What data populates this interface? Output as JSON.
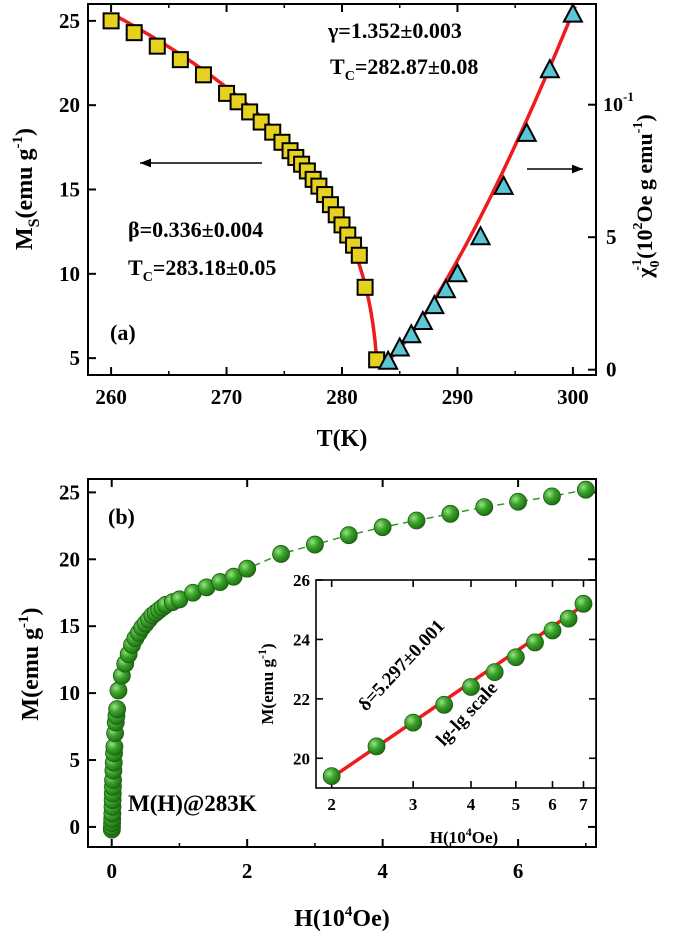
{
  "chart_data": [
    {
      "panel": "a",
      "type": "scatter",
      "panel_label": "(a)",
      "xlabel": "T(K)",
      "xlim": [
        258,
        302
      ],
      "xticks": [
        260,
        270,
        280,
        290,
        300
      ],
      "left_axis": {
        "label_main": "M",
        "label_sub": "S",
        "label_rest": "(emu g",
        "label_sup": "-1",
        "label_close": ")",
        "ylim": [
          4,
          26
        ],
        "yticks": [
          5,
          10,
          15,
          20,
          25
        ]
      },
      "right_axis": {
        "label_main": "χ",
        "label_sub": "0",
        "label_pre_sup": "-1",
        "label_rest": "(10",
        "label_sup2": "2",
        "label_rest2": "Oe g emu",
        "label_sup3": "-1",
        "label_close": ")",
        "ylim": [
          -0.2,
          13.8
        ],
        "yticks": [
          0,
          5,
          10
        ],
        "top_tick_exponent": "-1"
      },
      "series": [
        {
          "name": "Ms(T)",
          "marker": "square",
          "color": "#e6d21e",
          "axis": "left",
          "x": [
            260,
            262,
            264,
            266,
            268,
            270,
            271,
            272,
            273,
            274,
            274.8,
            275.5,
            276,
            276.5,
            277,
            277.5,
            278,
            278.5,
            279,
            279.5,
            280,
            280.5,
            281,
            281.5,
            282,
            283
          ],
          "y": [
            25.0,
            24.3,
            23.5,
            22.7,
            21.8,
            20.7,
            20.2,
            19.6,
            19.0,
            18.4,
            17.8,
            17.3,
            16.9,
            16.5,
            16.1,
            15.6,
            15.2,
            14.7,
            14.1,
            13.5,
            12.9,
            12.3,
            11.7,
            11.1,
            9.2,
            4.9
          ]
        },
        {
          "name": "chi0^-1(T)",
          "marker": "triangle",
          "color": "#5bc7d4",
          "axis": "right",
          "x": [
            284,
            285,
            286,
            287,
            288,
            289,
            290,
            292,
            294,
            296,
            298,
            300
          ],
          "y": [
            0.3,
            0.8,
            1.3,
            1.8,
            2.4,
            3.0,
            3.6,
            5.0,
            6.9,
            8.9,
            11.3,
            13.4
          ]
        }
      ],
      "fit_left": {
        "beta": 0.336,
        "tc": 283.18,
        "x_from": 260,
        "x_to": 283.18
      },
      "fit_right": {
        "gamma": 1.352,
        "tc": 282.87,
        "x_from": 283.18,
        "x_to": 300.2
      },
      "annotations": {
        "gamma_line": "γ=1.352±0.003",
        "tc_right_prefix": "T",
        "tc_right_sub": "C",
        "tc_right_value": "=282.87±0.08",
        "beta_line": "β=0.336±0.004",
        "tc_left_prefix": "T",
        "tc_left_sub": "C",
        "tc_left_value": "=283.18±0.05"
      },
      "fit_color": "#ee1c1c"
    },
    {
      "panel": "b",
      "type": "scatter",
      "panel_label": "(b)",
      "xlabel_main": "H(10",
      "xlabel_sup": "4",
      "xlabel_close": "Oe)",
      "ylabel_main": "M(emu g",
      "ylabel_sup": "-1",
      "ylabel_close": ")",
      "xlim": [
        -0.35,
        7.15
      ],
      "ylim": [
        -1.5,
        26
      ],
      "xticks": [
        0,
        2,
        4,
        6
      ],
      "yticks": [
        0,
        5,
        10,
        15,
        20,
        25
      ],
      "marker_color": "#2e9c1e",
      "curve_label": "M(H)@283K",
      "series": [
        {
          "name": "M(H)",
          "x": [
            0.002,
            0.004,
            0.006,
            0.008,
            0.01,
            0.012,
            0.014,
            0.016,
            0.018,
            0.02,
            0.025,
            0.03,
            0.035,
            0.04,
            0.05,
            0.06,
            0.07,
            0.08,
            0.1,
            0.15,
            0.2,
            0.25,
            0.3,
            0.35,
            0.4,
            0.45,
            0.5,
            0.55,
            0.6,
            0.65,
            0.7,
            0.75,
            0.8,
            0.9,
            1.0,
            1.2,
            1.4,
            1.6,
            1.8,
            2.0,
            2.5,
            3.0,
            3.5,
            4.0,
            4.5,
            5.0,
            5.5,
            6.0,
            6.5,
            7.0
          ],
          "y": [
            -0.2,
            0.0,
            0.3,
            0.6,
            1.0,
            1.5,
            2.0,
            2.5,
            3.0,
            3.5,
            4.2,
            4.8,
            5.5,
            6.0,
            7.0,
            7.8,
            8.3,
            8.8,
            10.2,
            11.3,
            12.2,
            12.9,
            13.6,
            14.1,
            14.5,
            14.9,
            15.2,
            15.5,
            15.8,
            16.0,
            16.2,
            16.4,
            16.6,
            16.8,
            17.0,
            17.5,
            17.9,
            18.3,
            18.7,
            19.3,
            20.4,
            21.1,
            21.8,
            22.4,
            22.9,
            23.4,
            23.9,
            24.3,
            24.7,
            25.2
          ]
        }
      ],
      "inset": {
        "type": "scatter",
        "xlabel_main": "H(10",
        "xlabel_sup": "4",
        "xlabel_close": "Oe)",
        "ylabel_main": "M(emu g",
        "ylabel_sup": "-1",
        "ylabel_close": ")",
        "xscale": "log",
        "xlim": [
          1.85,
          7.45
        ],
        "ylim": [
          19,
          26
        ],
        "xticks": [
          2,
          3,
          4,
          5,
          6,
          7
        ],
        "yticks": [
          20,
          22,
          24,
          26
        ],
        "x": [
          2.0,
          2.5,
          3.0,
          3.5,
          4.0,
          4.5,
          5.0,
          5.5,
          6.0,
          6.5,
          7.0
        ],
        "y": [
          19.4,
          20.4,
          21.2,
          21.8,
          22.4,
          22.9,
          23.4,
          23.9,
          24.3,
          24.7,
          25.2
        ],
        "fit": {
          "delta": 5.297,
          "x_from": 2.0,
          "x_to": 7.0,
          "y_from": 19.35,
          "y_to": 25.15
        },
        "delta_label": "δ=5.297±0.001",
        "scale_label": "lg-lg scale"
      }
    }
  ]
}
